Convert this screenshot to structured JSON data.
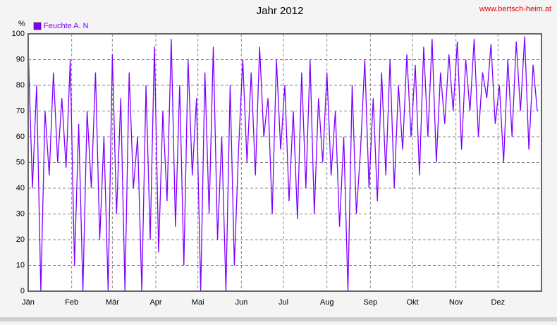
{
  "chart_data": {
    "type": "line",
    "title": "Jahr 2012",
    "watermark": "www.bertsch-heim.at",
    "y_label": "%",
    "legend": "top-left",
    "grid": true,
    "xlim": [
      0,
      366
    ],
    "xticks": [
      {
        "value": 0,
        "label": "Jän"
      },
      {
        "value": 31,
        "label": "Feb"
      },
      {
        "value": 60,
        "label": "Mär"
      },
      {
        "value": 91,
        "label": "Apr"
      },
      {
        "value": 121,
        "label": "Mai"
      },
      {
        "value": 152,
        "label": "Jun"
      },
      {
        "value": 182,
        "label": "Jul"
      },
      {
        "value": 213,
        "label": "Aug"
      },
      {
        "value": 244,
        "label": "Sep"
      },
      {
        "value": 274,
        "label": "Okt"
      },
      {
        "value": 305,
        "label": "Nov"
      },
      {
        "value": 335,
        "label": "Dez"
      }
    ],
    "ylim": [
      0,
      100
    ],
    "yticks": [
      0,
      10,
      20,
      30,
      40,
      50,
      60,
      70,
      80,
      90,
      100
    ],
    "x": [
      0,
      3,
      6,
      9,
      12,
      15,
      18,
      21,
      24,
      27,
      30,
      33,
      36,
      39,
      42,
      45,
      48,
      51,
      54,
      57,
      60,
      63,
      66,
      69,
      72,
      75,
      78,
      81,
      84,
      87,
      90,
      93,
      96,
      99,
      102,
      105,
      108,
      111,
      114,
      117,
      120,
      123,
      126,
      129,
      132,
      135,
      138,
      141,
      144,
      147,
      150,
      153,
      156,
      159,
      162,
      165,
      168,
      171,
      174,
      177,
      180,
      183,
      186,
      189,
      192,
      195,
      198,
      201,
      204,
      207,
      210,
      213,
      216,
      219,
      222,
      225,
      228,
      231,
      234,
      237,
      240,
      243,
      246,
      249,
      252,
      255,
      258,
      261,
      264,
      267,
      270,
      273,
      276,
      279,
      282,
      285,
      288,
      291,
      294,
      297,
      300,
      303,
      306,
      309,
      312,
      315,
      318,
      321,
      324,
      327,
      330,
      333,
      336,
      339,
      342,
      345,
      348,
      351,
      354,
      357,
      360,
      363
    ],
    "series": [
      {
        "name": "Feuchte A. N",
        "color": "#7f00ff",
        "values": [
          95,
          40,
          80,
          0,
          70,
          45,
          85,
          50,
          75,
          48,
          90,
          10,
          65,
          0,
          70,
          40,
          85,
          20,
          60,
          0,
          92,
          30,
          75,
          0,
          85,
          40,
          60,
          0,
          80,
          20,
          95,
          15,
          70,
          35,
          98,
          25,
          80,
          10,
          90,
          45,
          75,
          0,
          85,
          30,
          95,
          20,
          60,
          0,
          80,
          10,
          55,
          90,
          50,
          85,
          45,
          95,
          60,
          75,
          30,
          90,
          55,
          80,
          35,
          70,
          28,
          85,
          40,
          90,
          30,
          75,
          50,
          85,
          45,
          70,
          25,
          60,
          0,
          80,
          30,
          55,
          90,
          40,
          75,
          35,
          85,
          45,
          90,
          40,
          80,
          55,
          92,
          60,
          88,
          45,
          95,
          60,
          98,
          50,
          85,
          65,
          92,
          70,
          97,
          55,
          90,
          70,
          98,
          60,
          85,
          75,
          96,
          65,
          80,
          50,
          90,
          60,
          97,
          70,
          99,
          55,
          88,
          70
        ]
      }
    ]
  }
}
